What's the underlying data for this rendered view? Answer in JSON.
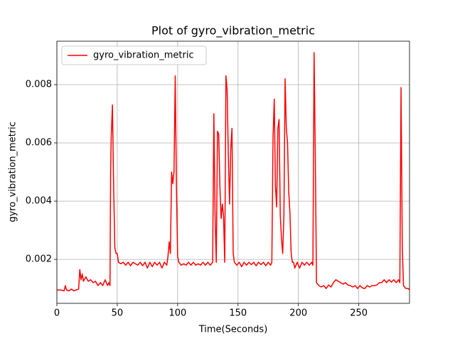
{
  "chart_data": {
    "type": "line",
    "title": "Plot of gyro_vibration_metric",
    "xlabel": "Time(Seconds)",
    "ylabel": "gyro_vibration_metric",
    "xlim": [
      0,
      292
    ],
    "ylim": [
      0.00049,
      0.00949
    ],
    "xticks": [
      0,
      50,
      100,
      150,
      200,
      250
    ],
    "yticks": [
      0.002,
      0.004,
      0.006,
      0.008
    ],
    "grid": true,
    "legend": "upper left",
    "x": [
      0,
      3,
      6,
      7,
      8,
      10,
      12,
      14,
      16,
      18,
      19,
      20,
      21,
      22,
      24,
      26,
      28,
      30,
      32,
      34,
      36,
      38,
      40,
      42,
      43,
      44,
      44.5,
      45,
      46,
      47,
      48,
      49,
      50,
      51,
      53,
      55,
      57,
      59,
      61,
      63,
      65,
      67,
      69,
      71,
      73,
      75,
      77,
      79,
      81,
      83,
      85,
      87,
      89,
      91,
      92,
      93,
      94,
      95,
      96,
      97,
      98,
      99,
      100,
      101,
      103,
      105,
      107,
      109,
      111,
      113,
      115,
      117,
      119,
      121,
      123,
      125,
      127,
      129,
      130,
      131,
      132,
      133,
      134,
      135,
      136,
      137,
      138,
      139,
      140,
      141,
      142,
      143,
      144,
      145,
      146,
      147,
      149,
      151,
      153,
      155,
      157,
      159,
      161,
      163,
      165,
      167,
      169,
      171,
      173,
      175,
      177,
      178,
      179,
      180,
      181,
      182,
      183,
      184,
      185,
      186,
      187,
      188,
      189,
      190,
      191,
      192,
      193,
      194,
      195,
      196,
      197,
      199,
      201,
      203,
      205,
      207,
      209,
      211,
      212,
      213,
      214,
      215,
      217,
      219,
      221,
      223,
      225,
      227,
      229,
      231,
      233,
      235,
      237,
      239,
      241,
      243,
      245,
      247,
      249,
      251,
      253,
      255,
      257,
      259,
      261,
      263,
      265,
      267,
      269,
      271,
      273,
      275,
      277,
      279,
      281,
      283,
      284,
      285,
      286,
      287,
      289,
      291,
      292
    ],
    "series": [
      {
        "name": "gyro_vibration_metric",
        "color": "#ff0000",
        "values": [
          0.00095,
          0.00095,
          0.00092,
          0.0011,
          0.00095,
          0.00092,
          0.00098,
          0.00092,
          0.00095,
          0.00098,
          0.00165,
          0.0013,
          0.0015,
          0.00125,
          0.0014,
          0.00125,
          0.0013,
          0.0012,
          0.00125,
          0.0011,
          0.0012,
          0.0011,
          0.0013,
          0.0011,
          0.0012,
          0.0011,
          0.005,
          0.0062,
          0.0073,
          0.0045,
          0.0024,
          0.0022,
          0.0022,
          0.0019,
          0.00185,
          0.0019,
          0.0018,
          0.0019,
          0.00178,
          0.0019,
          0.00185,
          0.0018,
          0.0019,
          0.00178,
          0.0019,
          0.0017,
          0.0019,
          0.00175,
          0.0019,
          0.0018,
          0.0019,
          0.0017,
          0.0019,
          0.0018,
          0.0021,
          0.0026,
          0.0022,
          0.005,
          0.0046,
          0.005,
          0.0083,
          0.0045,
          0.0021,
          0.0019,
          0.0018,
          0.00185,
          0.0018,
          0.0019,
          0.0018,
          0.0019,
          0.0018,
          0.00185,
          0.0018,
          0.0019,
          0.0018,
          0.0019,
          0.0018,
          0.0019,
          0.007,
          0.0035,
          0.0019,
          0.0064,
          0.0063,
          0.0045,
          0.0034,
          0.0039,
          0.0035,
          0.0019,
          0.0083,
          0.0078,
          0.0055,
          0.0039,
          0.0058,
          0.0065,
          0.0022,
          0.0019,
          0.0018,
          0.0019,
          0.00175,
          0.0019,
          0.0018,
          0.0019,
          0.00182,
          0.0019,
          0.00178,
          0.0019,
          0.00182,
          0.0019,
          0.00178,
          0.0019,
          0.0018,
          0.0019,
          0.0062,
          0.0075,
          0.0045,
          0.0038,
          0.0065,
          0.0068,
          0.0035,
          0.0027,
          0.0022,
          0.0035,
          0.0082,
          0.0065,
          0.006,
          0.0043,
          0.0036,
          0.0022,
          0.0019,
          0.0019,
          0.0017,
          0.0019,
          0.0017,
          0.0019,
          0.0018,
          0.0019,
          0.0018,
          0.0019,
          0.0018,
          0.0091,
          0.0055,
          0.0012,
          0.0011,
          0.00105,
          0.0011,
          0.001,
          0.00112,
          0.00105,
          0.0012,
          0.0013,
          0.00125,
          0.0012,
          0.00115,
          0.0012,
          0.00112,
          0.0011,
          0.00105,
          0.0011,
          0.001,
          0.0011,
          0.00102,
          0.001,
          0.0011,
          0.00105,
          0.0011,
          0.0011,
          0.00112,
          0.0012,
          0.0012,
          0.0013,
          0.0012,
          0.0013,
          0.00122,
          0.0013,
          0.0012,
          0.0013,
          0.0012,
          0.0079,
          0.0025,
          0.0011,
          0.001,
          0.001,
          0.00095
        ]
      }
    ]
  }
}
